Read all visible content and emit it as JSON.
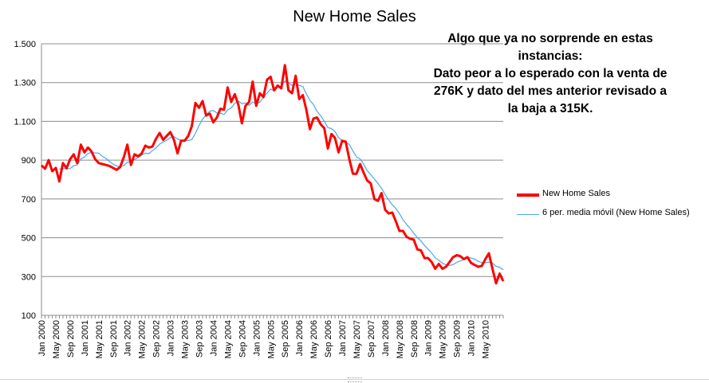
{
  "chart_data": {
    "type": "line",
    "title": "New Home Sales",
    "annotation": [
      "Algo que ya no sorprende en estas",
      "instancias:",
      "Dato peor a lo esperado con la venta de",
      "276K y dato del mes anterior revisado a",
      "la baja a 315K."
    ],
    "ylim": [
      100,
      1500
    ],
    "yticks": [
      100,
      300,
      500,
      700,
      900,
      1100,
      1300,
      1500
    ],
    "ytick_labels": [
      "100",
      "300",
      "500",
      "700",
      "900",
      "1.100",
      "1.300",
      "1.500"
    ],
    "grid": true,
    "legend_position": "right",
    "xtick_labels": [
      "Jan 2000",
      "May 2000",
      "Sep 2000",
      "Jan 2001",
      "May 2001",
      "Sep 2001",
      "Jan 2002",
      "May 2002",
      "Sep 2002",
      "Jan 2003",
      "May 2003",
      "Sep 2003",
      "Jan 2004",
      "May 2004",
      "Sep 2004",
      "Jan 2005",
      "May 2005",
      "Sep 2005",
      "Jan 2006",
      "May 2006",
      "Sep 2006",
      "Jan 2007",
      "May 2007",
      "Sep 2007",
      "Jan 2008",
      "May 2008",
      "Sep 2008",
      "Jan 2009",
      "May 2009",
      "Sep 2009",
      "Jan 2010",
      "May 2010"
    ],
    "series": [
      {
        "name": "New Home Sales",
        "color": "#ff0000",
        "values": [
          873,
          856,
          900,
          843,
          860,
          790,
          885,
          858,
          905,
          930,
          885,
          980,
          940,
          965,
          945,
          905,
          885,
          880,
          875,
          870,
          860,
          850,
          865,
          915,
          980,
          875,
          930,
          920,
          935,
          975,
          965,
          970,
          1010,
          1040,
          1005,
          1025,
          1045,
          1005,
          935,
          1000,
          1000,
          1025,
          1075,
          1195,
          1170,
          1205,
          1130,
          1140,
          1095,
          1120,
          1165,
          1160,
          1275,
          1200,
          1240,
          1185,
          1090,
          1180,
          1200,
          1305,
          1180,
          1245,
          1225,
          1315,
          1330,
          1260,
          1285,
          1270,
          1390,
          1260,
          1245,
          1335,
          1215,
          1235,
          1160,
          1060,
          1115,
          1120,
          1085,
          1065,
          960,
          1035,
          1015,
          940,
          1000,
          995,
          905,
          830,
          830,
          880,
          835,
          795,
          780,
          700,
          690,
          730,
          645,
          625,
          630,
          585,
          535,
          535,
          505,
          495,
          490,
          440,
          435,
          395,
          395,
          375,
          340,
          365,
          340,
          350,
          375,
          400,
          410,
          405,
          390,
          400,
          370,
          360,
          350,
          355,
          390,
          420,
          340,
          265,
          315,
          276
        ]
      },
      {
        "name": "6 per. media móvil (New Home Sales)",
        "color": "#4aa8e8",
        "values": []
      }
    ]
  }
}
